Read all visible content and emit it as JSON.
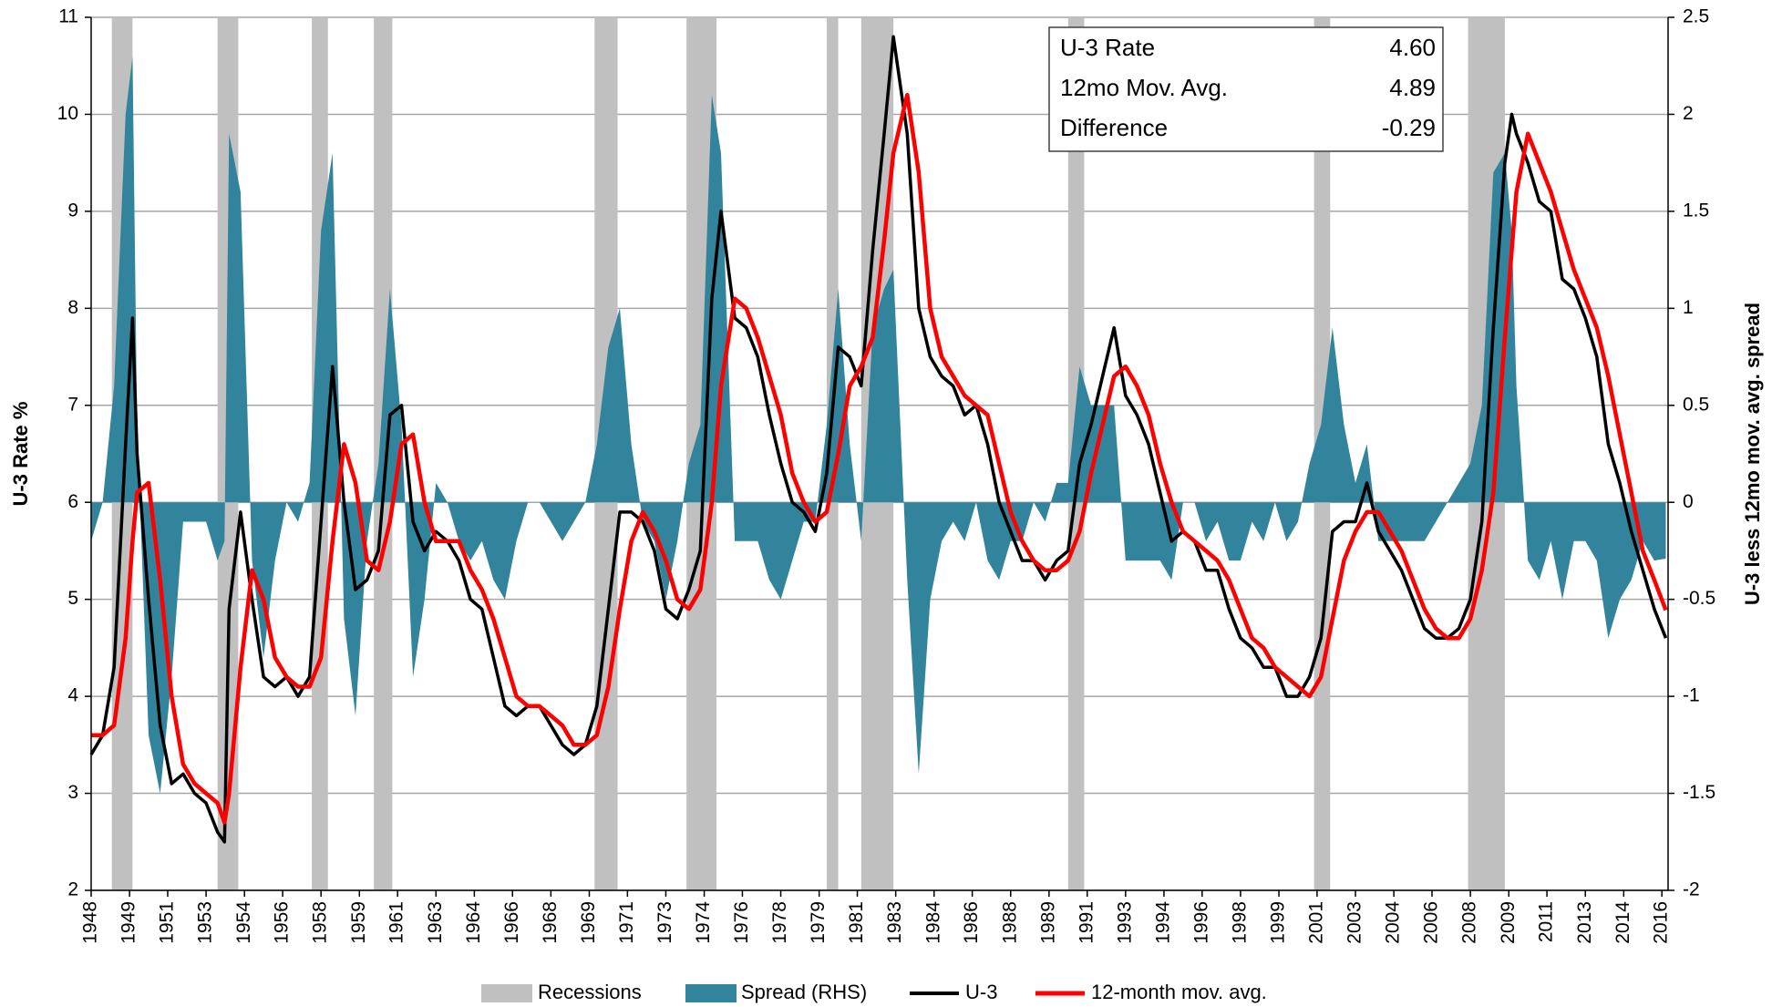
{
  "chart_data": {
    "type": "line",
    "ylabel": "U-3 Rate %",
    "y2label": "U-3 less 12mo mov. avg. spread",
    "xlim": [
      1948,
      2016.6
    ],
    "ylim": [
      2,
      11
    ],
    "yticks": [
      2,
      3,
      4,
      5,
      6,
      7,
      8,
      9,
      10,
      11
    ],
    "y2lim": [
      -2,
      2.5
    ],
    "y2ticks": [
      -2,
      -1.5,
      -1,
      -0.5,
      0,
      0.5,
      1,
      1.5,
      2,
      2.5
    ],
    "grid": true,
    "xticks": [
      {
        "value": 1948.0,
        "label": "1948"
      },
      {
        "value": 1949.67,
        "label": "1949"
      },
      {
        "value": 1951.33,
        "label": "1951"
      },
      {
        "value": 1953.0,
        "label": "1953"
      },
      {
        "value": 1954.67,
        "label": "1954"
      },
      {
        "value": 1956.33,
        "label": "1956"
      },
      {
        "value": 1958.0,
        "label": "1958"
      },
      {
        "value": 1959.67,
        "label": "1959"
      },
      {
        "value": 1961.33,
        "label": "1961"
      },
      {
        "value": 1963.0,
        "label": "1963"
      },
      {
        "value": 1964.67,
        "label": "1964"
      },
      {
        "value": 1966.33,
        "label": "1966"
      },
      {
        "value": 1968.0,
        "label": "1968"
      },
      {
        "value": 1969.67,
        "label": "1969"
      },
      {
        "value": 1971.33,
        "label": "1971"
      },
      {
        "value": 1973.0,
        "label": "1973"
      },
      {
        "value": 1974.67,
        "label": "1974"
      },
      {
        "value": 1976.33,
        "label": "1976"
      },
      {
        "value": 1978.0,
        "label": "1978"
      },
      {
        "value": 1979.67,
        "label": "1979"
      },
      {
        "value": 1981.33,
        "label": "1981"
      },
      {
        "value": 1983.0,
        "label": "1983"
      },
      {
        "value": 1984.67,
        "label": "1984"
      },
      {
        "value": 1986.33,
        "label": "1986"
      },
      {
        "value": 1988.0,
        "label": "1988"
      },
      {
        "value": 1989.67,
        "label": "1989"
      },
      {
        "value": 1991.33,
        "label": "1991"
      },
      {
        "value": 1993.0,
        "label": "1993"
      },
      {
        "value": 1994.67,
        "label": "1994"
      },
      {
        "value": 1996.33,
        "label": "1996"
      },
      {
        "value": 1998.0,
        "label": "1998"
      },
      {
        "value": 1999.67,
        "label": "1999"
      },
      {
        "value": 2001.33,
        "label": "2001"
      },
      {
        "value": 2003.0,
        "label": "2003"
      },
      {
        "value": 2004.67,
        "label": "2004"
      },
      {
        "value": 2006.33,
        "label": "2006"
      },
      {
        "value": 2008.0,
        "label": "2008"
      },
      {
        "value": 2009.67,
        "label": "2009"
      },
      {
        "value": 2011.33,
        "label": "2011"
      },
      {
        "value": 2013.0,
        "label": "2013"
      },
      {
        "value": 2014.67,
        "label": "2014"
      },
      {
        "value": 2016.33,
        "label": "2016"
      }
    ],
    "recessions": {
      "name": "Recessions",
      "color": "#c0c0c0",
      "spans": [
        [
          1948.9,
          1949.8
        ],
        [
          1953.5,
          1954.4
        ],
        [
          1957.6,
          1958.3
        ],
        [
          1960.3,
          1961.1
        ],
        [
          1969.9,
          1970.9
        ],
        [
          1973.9,
          1975.2
        ],
        [
          1980.0,
          1980.5
        ],
        [
          1981.5,
          1982.9
        ],
        [
          1990.5,
          1991.2
        ],
        [
          2001.2,
          2001.9
        ],
        [
          2007.9,
          2009.5
        ]
      ]
    },
    "x": [
      1948.0,
      1948.5,
      1949.0,
      1949.5,
      1949.8,
      1950.0,
      1950.5,
      1951.0,
      1951.5,
      1952.0,
      1952.5,
      1953.0,
      1953.5,
      1953.8,
      1954.0,
      1954.5,
      1955.0,
      1955.5,
      1956.0,
      1956.5,
      1957.0,
      1957.5,
      1958.0,
      1958.5,
      1959.0,
      1959.5,
      1960.0,
      1960.5,
      1961.0,
      1961.5,
      1962.0,
      1962.5,
      1963.0,
      1963.5,
      1964.0,
      1964.5,
      1965.0,
      1965.5,
      1966.0,
      1966.5,
      1967.0,
      1967.5,
      1968.0,
      1968.5,
      1969.0,
      1969.5,
      1970.0,
      1970.5,
      1971.0,
      1971.5,
      1972.0,
      1972.5,
      1973.0,
      1973.5,
      1974.0,
      1974.5,
      1975.0,
      1975.4,
      1976.0,
      1976.5,
      1977.0,
      1977.5,
      1978.0,
      1978.5,
      1979.0,
      1979.5,
      1980.0,
      1980.5,
      1981.0,
      1981.5,
      1982.0,
      1982.5,
      1982.9,
      1983.5,
      1984.0,
      1984.5,
      1985.0,
      1985.5,
      1986.0,
      1986.5,
      1987.0,
      1987.5,
      1988.0,
      1988.5,
      1989.0,
      1989.5,
      1990.0,
      1990.5,
      1991.0,
      1991.5,
      1992.0,
      1992.5,
      1993.0,
      1993.5,
      1994.0,
      1994.5,
      1995.0,
      1995.5,
      1996.0,
      1996.5,
      1997.0,
      1997.5,
      1998.0,
      1998.5,
      1999.0,
      1999.5,
      2000.0,
      2000.5,
      2001.0,
      2001.5,
      2002.0,
      2002.5,
      2003.0,
      2003.5,
      2004.0,
      2004.5,
      2005.0,
      2005.5,
      2006.0,
      2006.5,
      2007.0,
      2007.5,
      2008.0,
      2008.5,
      2009.0,
      2009.5,
      2009.8,
      2010.0,
      2010.5,
      2011.0,
      2011.5,
      2012.0,
      2012.5,
      2013.0,
      2013.5,
      2014.0,
      2014.5,
      2015.0,
      2015.5,
      2016.0,
      2016.5
    ],
    "series": [
      {
        "name": "Spread (RHS)",
        "type": "area",
        "axis": "y2",
        "color": "#31849b",
        "values": [
          -0.2,
          0.0,
          0.6,
          2.0,
          2.3,
          0.4,
          -1.2,
          -1.5,
          -0.9,
          -0.1,
          -0.1,
          -0.1,
          -0.3,
          -0.2,
          1.9,
          1.6,
          -0.3,
          -0.8,
          -0.3,
          0.0,
          -0.1,
          0.1,
          1.4,
          1.8,
          -0.6,
          -1.1,
          -0.2,
          0.2,
          1.1,
          0.4,
          -0.9,
          -0.5,
          0.1,
          0.0,
          -0.2,
          -0.3,
          -0.2,
          -0.4,
          -0.5,
          -0.2,
          0.0,
          0.0,
          -0.1,
          -0.2,
          -0.1,
          0.0,
          0.3,
          0.8,
          1.0,
          0.3,
          -0.1,
          -0.2,
          -0.5,
          -0.2,
          0.2,
          0.4,
          2.1,
          1.8,
          -0.2,
          -0.2,
          -0.2,
          -0.4,
          -0.5,
          -0.3,
          -0.1,
          -0.1,
          0.4,
          1.1,
          0.3,
          -0.2,
          0.9,
          1.1,
          1.2,
          -0.4,
          -1.4,
          -0.5,
          -0.2,
          -0.1,
          -0.2,
          0.0,
          -0.3,
          -0.4,
          -0.2,
          -0.2,
          0.0,
          -0.1,
          0.1,
          0.1,
          0.7,
          0.5,
          0.5,
          0.5,
          -0.3,
          -0.3,
          -0.3,
          -0.3,
          -0.4,
          0.0,
          0.0,
          -0.2,
          -0.1,
          -0.3,
          -0.3,
          -0.1,
          -0.2,
          0.0,
          -0.2,
          -0.1,
          0.2,
          0.4,
          0.9,
          0.4,
          0.1,
          0.3,
          -0.2,
          -0.2,
          -0.2,
          -0.2,
          -0.2,
          -0.1,
          0.0,
          0.1,
          0.2,
          0.5,
          1.7,
          1.8,
          1.4,
          0.6,
          -0.3,
          -0.4,
          -0.2,
          -0.5,
          -0.2,
          -0.2,
          -0.3,
          -0.7,
          -0.5,
          -0.4,
          -0.2,
          -0.3,
          -0.29
        ]
      },
      {
        "name": "U-3",
        "type": "line",
        "color": "#000000",
        "values": [
          3.4,
          3.6,
          4.3,
          6.6,
          7.9,
          6.5,
          5.0,
          3.7,
          3.1,
          3.2,
          3.0,
          2.9,
          2.6,
          2.5,
          4.9,
          5.9,
          5.0,
          4.2,
          4.1,
          4.2,
          4.0,
          4.2,
          5.8,
          7.4,
          6.0,
          5.1,
          5.2,
          5.5,
          6.9,
          7.0,
          5.8,
          5.5,
          5.7,
          5.6,
          5.4,
          5.0,
          4.9,
          4.4,
          3.9,
          3.8,
          3.9,
          3.9,
          3.7,
          3.5,
          3.4,
          3.5,
          3.9,
          4.9,
          5.9,
          5.9,
          5.8,
          5.5,
          4.9,
          4.8,
          5.1,
          5.5,
          8.1,
          9.0,
          7.9,
          7.8,
          7.5,
          6.9,
          6.4,
          6.0,
          5.9,
          5.7,
          6.3,
          7.6,
          7.5,
          7.2,
          8.6,
          9.8,
          10.8,
          9.8,
          8.0,
          7.5,
          7.3,
          7.2,
          6.9,
          7.0,
          6.6,
          6.0,
          5.7,
          5.4,
          5.4,
          5.2,
          5.4,
          5.5,
          6.4,
          6.8,
          7.3,
          7.8,
          7.1,
          6.9,
          6.6,
          6.1,
          5.6,
          5.7,
          5.6,
          5.3,
          5.3,
          4.9,
          4.6,
          4.5,
          4.3,
          4.3,
          4.0,
          4.0,
          4.2,
          4.6,
          5.7,
          5.8,
          5.8,
          6.2,
          5.7,
          5.5,
          5.3,
          5.0,
          4.7,
          4.6,
          4.6,
          4.7,
          5.0,
          5.8,
          7.8,
          9.5,
          10.0,
          9.8,
          9.5,
          9.1,
          9.0,
          8.3,
          8.2,
          7.9,
          7.5,
          6.6,
          6.2,
          5.7,
          5.3,
          4.9,
          4.6
        ]
      },
      {
        "name": "12-month mov. avg.",
        "type": "line",
        "color": "#ff0000",
        "values": [
          3.6,
          3.6,
          3.7,
          4.6,
          5.6,
          6.1,
          6.2,
          5.2,
          4.0,
          3.3,
          3.1,
          3.0,
          2.9,
          2.7,
          3.0,
          4.3,
          5.3,
          5.0,
          4.4,
          4.2,
          4.1,
          4.1,
          4.4,
          5.6,
          6.6,
          6.2,
          5.4,
          5.3,
          5.8,
          6.6,
          6.7,
          6.0,
          5.6,
          5.6,
          5.6,
          5.3,
          5.1,
          4.8,
          4.4,
          4.0,
          3.9,
          3.9,
          3.8,
          3.7,
          3.5,
          3.5,
          3.6,
          4.1,
          4.9,
          5.6,
          5.9,
          5.7,
          5.4,
          5.0,
          4.9,
          5.1,
          6.0,
          7.2,
          8.1,
          8.0,
          7.7,
          7.3,
          6.9,
          6.3,
          6.0,
          5.8,
          5.9,
          6.5,
          7.2,
          7.4,
          7.7,
          8.7,
          9.6,
          10.2,
          9.4,
          8.0,
          7.5,
          7.3,
          7.1,
          7.0,
          6.9,
          6.4,
          5.9,
          5.6,
          5.4,
          5.3,
          5.3,
          5.4,
          5.7,
          6.3,
          6.8,
          7.3,
          7.4,
          7.2,
          6.9,
          6.4,
          6.0,
          5.7,
          5.6,
          5.5,
          5.4,
          5.2,
          4.9,
          4.6,
          4.5,
          4.3,
          4.2,
          4.1,
          4.0,
          4.2,
          4.8,
          5.4,
          5.7,
          5.9,
          5.9,
          5.7,
          5.5,
          5.2,
          4.9,
          4.7,
          4.6,
          4.6,
          4.8,
          5.3,
          6.1,
          7.7,
          8.6,
          9.2,
          9.8,
          9.5,
          9.2,
          8.8,
          8.4,
          8.1,
          7.8,
          7.3,
          6.7,
          6.1,
          5.5,
          5.2,
          4.89
        ]
      }
    ],
    "summary": {
      "labels": [
        "U-3 Rate",
        "12mo Mov. Avg.",
        "Difference"
      ],
      "values": [
        4.6,
        4.89,
        -0.29
      ],
      "value_labels": [
        "4.60",
        "4.89",
        "-0.29"
      ]
    }
  }
}
